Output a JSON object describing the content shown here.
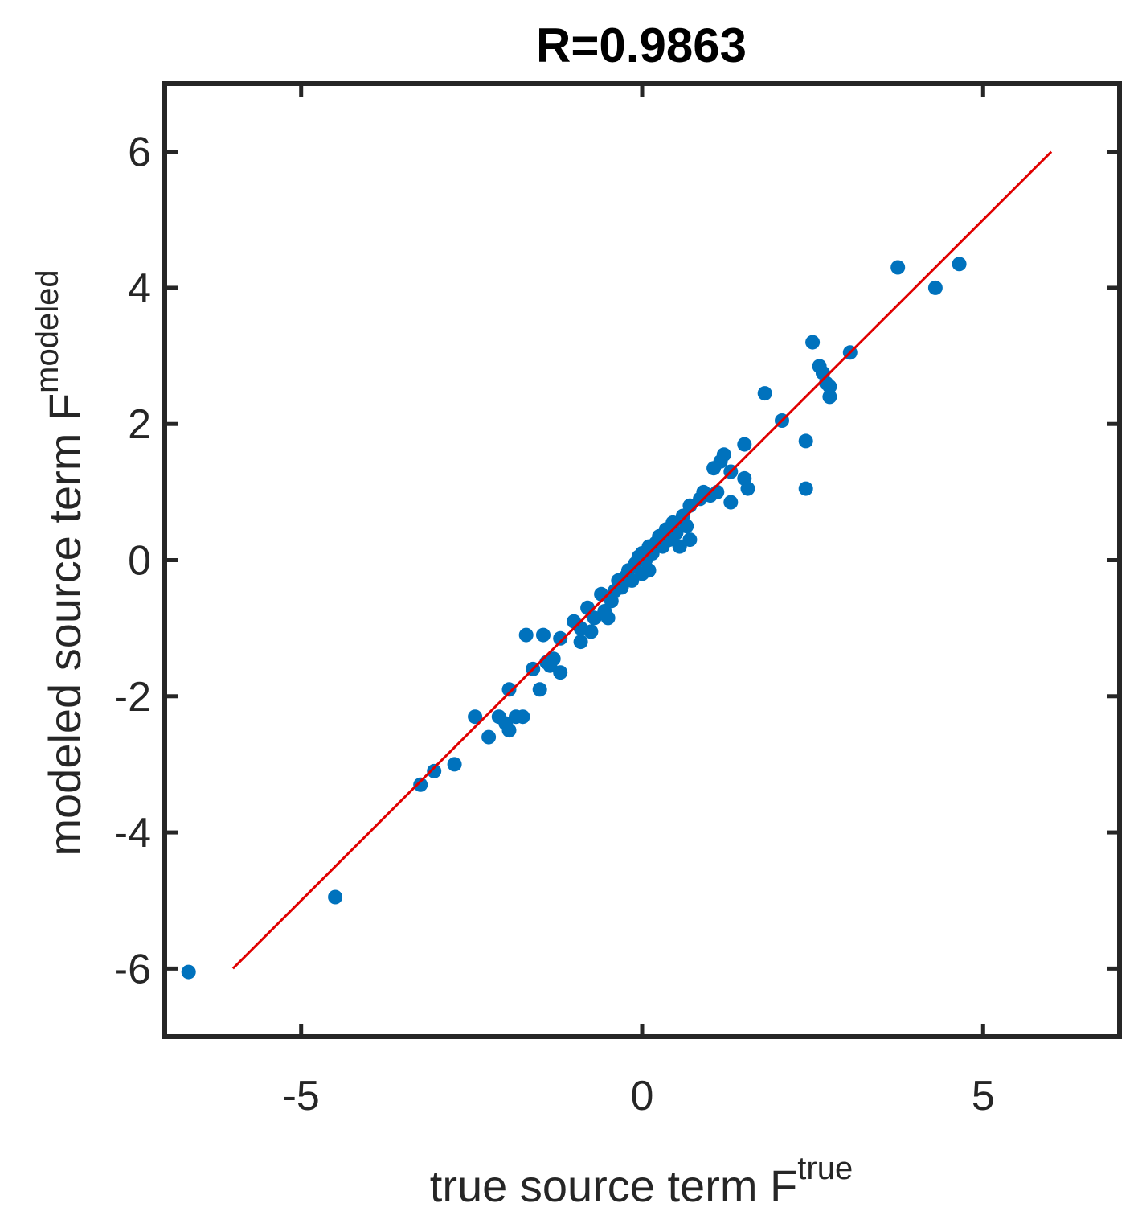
{
  "chart_data": {
    "type": "scatter",
    "title": "R=0.9863",
    "xlabel": "true source term F",
    "xlabel_superscript": "true",
    "ylabel": "modeled source term F",
    "ylabel_superscript": "modeled",
    "xlim": [
      -7,
      7
    ],
    "ylim": [
      -7,
      7
    ],
    "xticks": [
      -5,
      0,
      5
    ],
    "yticks": [
      -6,
      -4,
      -2,
      0,
      2,
      4,
      6
    ],
    "xtick_labels": [
      "-5",
      "0",
      "5"
    ],
    "ytick_labels": [
      "-6",
      "-4",
      "-2",
      "0",
      "2",
      "4",
      "6"
    ],
    "grid": false,
    "colors": {
      "points": "#0072BD",
      "fit_line": "#E00000",
      "axes": "#262626"
    },
    "fit_line": {
      "x": [
        -6,
        6
      ],
      "y": [
        -6,
        6
      ]
    },
    "points": [
      [
        -6.65,
        -6.05
      ],
      [
        -4.5,
        -4.95
      ],
      [
        -3.25,
        -3.3
      ],
      [
        -3.05,
        -3.1
      ],
      [
        -2.75,
        -3.0
      ],
      [
        -2.45,
        -2.3
      ],
      [
        -2.25,
        -2.6
      ],
      [
        -2.1,
        -2.3
      ],
      [
        -2.0,
        -2.4
      ],
      [
        -1.95,
        -2.5
      ],
      [
        -1.85,
        -2.3
      ],
      [
        -1.75,
        -2.3
      ],
      [
        -1.95,
        -1.9
      ],
      [
        -1.7,
        -1.1
      ],
      [
        -1.45,
        -1.1
      ],
      [
        -1.6,
        -1.6
      ],
      [
        -1.4,
        -1.5
      ],
      [
        -1.5,
        -1.9
      ],
      [
        -1.35,
        -1.55
      ],
      [
        -1.2,
        -1.65
      ],
      [
        -1.3,
        -1.45
      ],
      [
        -1.2,
        -1.15
      ],
      [
        -1.0,
        -0.9
      ],
      [
        -0.9,
        -1.2
      ],
      [
        -0.8,
        -0.7
      ],
      [
        -0.9,
        -1.0
      ],
      [
        -0.75,
        -1.05
      ],
      [
        -0.7,
        -0.85
      ],
      [
        -0.6,
        -0.5
      ],
      [
        -0.55,
        -0.75
      ],
      [
        -0.5,
        -0.85
      ],
      [
        -0.45,
        -0.6
      ],
      [
        -0.4,
        -0.45
      ],
      [
        -0.35,
        -0.3
      ],
      [
        -0.3,
        -0.4
      ],
      [
        -0.25,
        -0.25
      ],
      [
        -0.2,
        -0.15
      ],
      [
        -0.15,
        -0.3
      ],
      [
        -0.1,
        -0.05
      ],
      [
        -0.05,
        0.05
      ],
      [
        0.0,
        0.1
      ],
      [
        0.05,
        0.0
      ],
      [
        0.0,
        -0.2
      ],
      [
        0.1,
        0.2
      ],
      [
        0.15,
        0.1
      ],
      [
        0.2,
        0.25
      ],
      [
        0.1,
        -0.15
      ],
      [
        0.25,
        0.35
      ],
      [
        0.3,
        0.2
      ],
      [
        0.35,
        0.45
      ],
      [
        0.4,
        0.3
      ],
      [
        0.45,
        0.55
      ],
      [
        0.5,
        0.4
      ],
      [
        0.55,
        0.2
      ],
      [
        0.6,
        0.65
      ],
      [
        0.65,
        0.5
      ],
      [
        0.7,
        0.8
      ],
      [
        0.7,
        0.3
      ],
      [
        0.85,
        0.9
      ],
      [
        0.9,
        1.0
      ],
      [
        1.0,
        0.95
      ],
      [
        1.1,
        1.0
      ],
      [
        1.15,
        1.45
      ],
      [
        1.2,
        1.55
      ],
      [
        1.05,
        1.35
      ],
      [
        1.3,
        1.3
      ],
      [
        1.3,
        0.85
      ],
      [
        1.5,
        1.2
      ],
      [
        1.55,
        1.05
      ],
      [
        1.5,
        1.7
      ],
      [
        1.8,
        2.45
      ],
      [
        2.05,
        2.05
      ],
      [
        2.4,
        1.75
      ],
      [
        2.4,
        1.05
      ],
      [
        2.5,
        3.2
      ],
      [
        2.6,
        2.85
      ],
      [
        2.65,
        2.75
      ],
      [
        2.7,
        2.6
      ],
      [
        2.75,
        2.4
      ],
      [
        2.75,
        2.55
      ],
      [
        3.05,
        3.05
      ],
      [
        3.75,
        4.3
      ],
      [
        4.3,
        4.0
      ],
      [
        4.65,
        4.35
      ]
    ]
  }
}
